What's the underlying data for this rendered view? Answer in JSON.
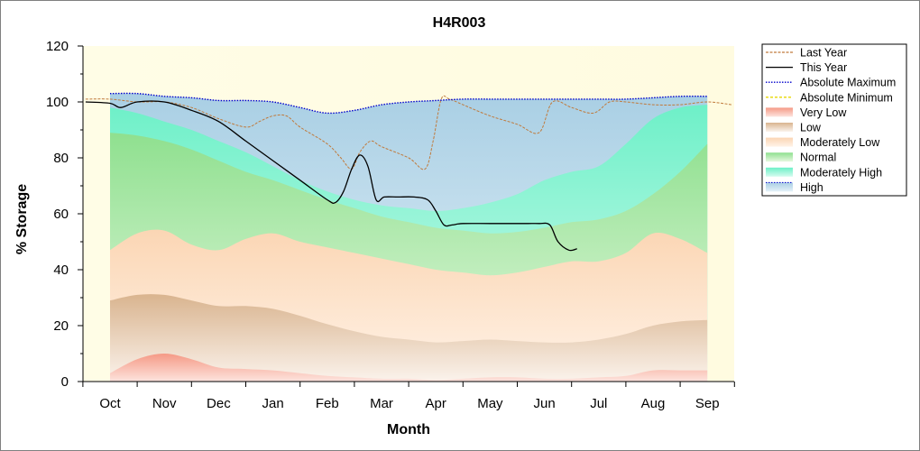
{
  "chart_data": {
    "type": "area",
    "title": "H4R003",
    "xlabel": "Month",
    "ylabel": "% Storage",
    "ylim": [
      0,
      120
    ],
    "yticks": [
      0,
      20,
      40,
      60,
      80,
      100,
      120
    ],
    "categories": [
      "Oct",
      "Nov",
      "Dec",
      "Jan",
      "Feb",
      "Mar",
      "Apr",
      "May",
      "Jun",
      "Jul",
      "Aug",
      "Sep"
    ],
    "grid": false,
    "legend_position": "top-right",
    "colors": {
      "very_low": "#f59a86",
      "low": "#d9b48f",
      "moderately_low": "#fbd6b4",
      "normal": "#8fe08f",
      "moderately_high": "#6ef0c8",
      "high": "#a9cfe4",
      "last_year": "#c07a3c",
      "this_year": "#000000",
      "absolute_maximum": "#0000cc",
      "absolute_minimum": "#e8d800",
      "plot_bg": "#fffde6"
    },
    "bands": {
      "x": [
        0,
        0.5,
        1,
        1.5,
        2,
        2.5,
        3,
        3.5,
        4,
        4.5,
        5,
        5.5,
        6,
        6.5,
        7,
        7.5,
        8,
        8.5,
        9,
        9.5,
        10,
        10.5,
        11
      ],
      "very_low_top": [
        3,
        8,
        10,
        8,
        5,
        4.5,
        4,
        3,
        2,
        1.5,
        1,
        1,
        0.5,
        1,
        1.5,
        1.5,
        1,
        1,
        1.5,
        2,
        4,
        4,
        4
      ],
      "low_top": [
        29,
        31,
        31,
        29,
        27,
        27,
        26,
        23.5,
        20.5,
        18,
        16,
        15,
        14,
        14.5,
        15,
        14.5,
        14,
        14,
        15,
        17,
        20,
        21.5,
        22
      ],
      "moderately_low_top": [
        47,
        53,
        54,
        49,
        47,
        51,
        53,
        50,
        48,
        46,
        44,
        42,
        40,
        39,
        38,
        39,
        41,
        43,
        43,
        46,
        53,
        51,
        46
      ],
      "normal_top": [
        89,
        88,
        86,
        83,
        79,
        75,
        72,
        68.5,
        65,
        62,
        59,
        57,
        55,
        54,
        53,
        53.5,
        55,
        57,
        58,
        61,
        67,
        75,
        85
      ],
      "moderately_high_top": [
        98,
        96,
        93,
        90,
        86,
        82,
        77,
        72,
        68,
        65,
        63,
        62,
        61,
        62,
        64,
        67,
        72,
        75,
        77,
        85,
        94,
        98,
        99
      ],
      "high_top": [
        103,
        103,
        102,
        101.5,
        100.5,
        100.5,
        100,
        98,
        96,
        97,
        99,
        100,
        100.5,
        101,
        101,
        101,
        101,
        101,
        101,
        101,
        101.5,
        102,
        102
      ]
    },
    "series": [
      {
        "name": "Last Year",
        "x": [
          -0.45,
          0,
          0.5,
          1,
          1.5,
          2,
          2.5,
          2.75,
          3,
          3.25,
          3.5,
          4,
          4.25,
          4.45,
          4.6,
          4.8,
          5,
          5.5,
          5.8,
          5.95,
          6.1,
          6.25,
          6.5,
          7,
          7.5,
          7.9,
          8.15,
          8.5,
          8.9,
          9.2,
          9.5,
          10,
          10.5,
          11,
          11.45
        ],
        "y": [
          101,
          101,
          100,
          100,
          98,
          94,
          91,
          93,
          95,
          95,
          91,
          85,
          80,
          76,
          82,
          86,
          84,
          80,
          76,
          86,
          101,
          101,
          99,
          95,
          92,
          89,
          100,
          98,
          96,
          100,
          100,
          99,
          99,
          100,
          99
        ]
      },
      {
        "name": "This Year",
        "x": [
          -0.45,
          0,
          0.2,
          0.5,
          1,
          1.5,
          2,
          2.5,
          3,
          3.5,
          4,
          4.15,
          4.3,
          4.45,
          4.6,
          4.75,
          4.9,
          5.05,
          5.3,
          5.6,
          5.85,
          6,
          6.15,
          6.3,
          6.5,
          7,
          7.5,
          7.7,
          7.9,
          8.1,
          8.25,
          8.45,
          8.6
        ],
        "y": [
          100,
          99.5,
          98,
          100,
          100,
          97,
          93,
          86,
          79,
          72,
          65,
          64,
          68,
          76,
          81,
          77,
          65,
          66,
          66,
          66,
          65,
          61,
          56,
          56,
          56.5,
          56.5,
          56.5,
          56.5,
          56.5,
          56,
          50,
          47,
          47.5
        ]
      },
      {
        "name": "Absolute Maximum",
        "x": [
          0,
          0.5,
          1,
          1.5,
          2,
          2.5,
          3,
          3.5,
          4,
          4.5,
          5,
          5.5,
          6,
          6.5,
          7,
          7.5,
          8,
          8.5,
          9,
          9.5,
          10,
          10.5,
          11
        ],
        "y": [
          103,
          103,
          102,
          101.5,
          100.5,
          100.5,
          100,
          98,
          96,
          97,
          99,
          100,
          100.5,
          101,
          101,
          101,
          101,
          101,
          101,
          101,
          101.5,
          102,
          102
        ]
      }
    ],
    "legend": [
      "Last Year",
      "This Year",
      "Absolute Maximum",
      "Absolute Minimum",
      "Very Low",
      "Low",
      "Moderately Low",
      "Normal",
      "Moderately High",
      "High"
    ]
  }
}
